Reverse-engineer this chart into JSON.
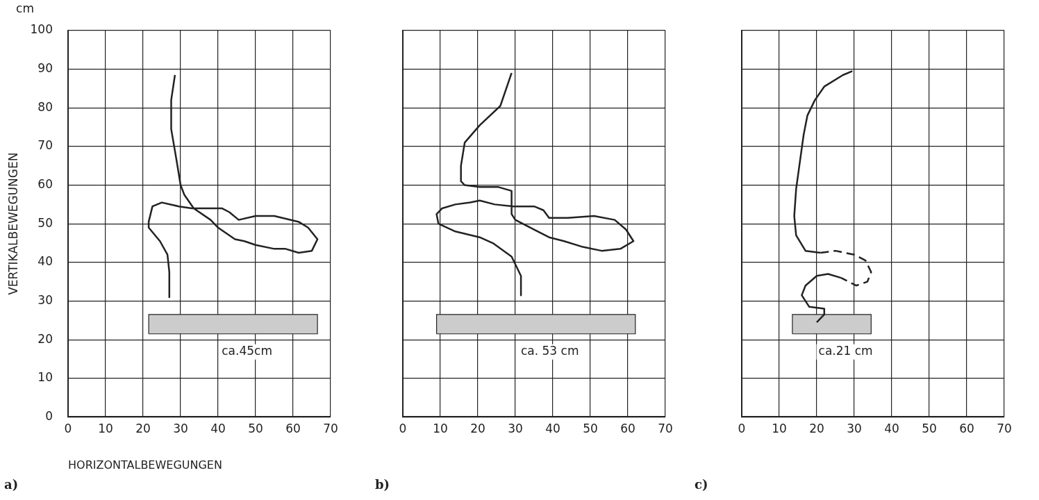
{
  "chart_data": [
    {
      "type": "line",
      "title": "a)",
      "xlabel": "HORIZONTALBEWEGUNGEN",
      "ylabel": "VERTIKALBEWEGUNGEN",
      "xlim": [
        0,
        70
      ],
      "ylim": [
        0,
        100
      ],
      "xticks": [
        0,
        10,
        20,
        30,
        40,
        50,
        60,
        70
      ],
      "yticks": [
        0,
        10,
        20,
        30,
        40,
        50,
        60,
        70,
        80,
        90,
        100
      ],
      "grid": true,
      "marker": "none",
      "annotations": [
        "ca.45cm",
        "cm"
      ],
      "series": [
        {
          "type": "line",
          "color": "#222222",
          "line_style": "solid",
          "x": [
            28.5,
            27.5,
            27.5,
            29,
            30,
            31,
            33.5,
            38,
            40,
            44.5,
            47,
            50,
            55,
            58,
            61.5,
            65,
            66.5,
            64,
            61.5,
            55,
            50,
            45.5,
            43,
            41,
            37,
            33,
            29.5,
            25,
            22.5,
            21.5,
            21.5,
            24.5,
            26.5,
            27,
            27
          ],
          "values": [
            88.5,
            82,
            74.5,
            66,
            60,
            57.5,
            54,
            51,
            49,
            46,
            45.5,
            44.5,
            43.5,
            43.5,
            42.5,
            43,
            46,
            49,
            50.5,
            52,
            52,
            51,
            53,
            54,
            54,
            54,
            54.5,
            55.5,
            54.5,
            50.5,
            49,
            45.5,
            42,
            37.5,
            31
          ]
        },
        {
          "type": "area",
          "color": "#cccccc",
          "x": [
            21.5,
            21.5,
            66.5,
            66.5,
            21.5
          ],
          "values": [
            21.5,
            26.5,
            26.5,
            21.5,
            21.5
          ]
        }
      ]
    },
    {
      "type": "line",
      "title": "b)",
      "xlim": [
        0,
        70
      ],
      "ylim": [
        0,
        100
      ],
      "xticks": [
        0,
        10,
        20,
        30,
        40,
        50,
        60,
        70
      ],
      "yticks": [
        0,
        10,
        20,
        30,
        40,
        50,
        60,
        70,
        80,
        90,
        100
      ],
      "grid": true,
      "marker": "none",
      "tick_labels": "x",
      "annotations": [
        "ca. 53 cm"
      ],
      "series": [
        {
          "type": "line",
          "color": "#222222",
          "line_style": "solid",
          "x": [
            29,
            26,
            20.5,
            16.5,
            15.5,
            15.5,
            16.5,
            20.5,
            25.5,
            29,
            29,
            30,
            35,
            39,
            43,
            48,
            53,
            58,
            61.5,
            59.5,
            56.5,
            51,
            44,
            39,
            37.5,
            35,
            29.5,
            24.5,
            20.5,
            18,
            14,
            10.5,
            9,
            9.5,
            14,
            20.5,
            24,
            29,
            31.5,
            31.5
          ],
          "values": [
            89,
            80.5,
            75.5,
            71,
            65,
            61,
            60,
            59.5,
            59.5,
            58.5,
            52.5,
            51,
            48.5,
            46.5,
            45.5,
            44,
            43,
            43.5,
            45.5,
            48.5,
            51,
            52,
            51.5,
            51.5,
            53.5,
            54.5,
            54.5,
            55,
            56,
            55.5,
            55,
            54,
            52.5,
            50,
            48,
            46.5,
            45,
            41.5,
            36.5,
            31.5
          ]
        },
        {
          "type": "area",
          "color": "#cccccc",
          "x": [
            9,
            9,
            62,
            62,
            9
          ],
          "values": [
            21.5,
            26.5,
            26.5,
            21.5,
            21.5
          ]
        }
      ]
    },
    {
      "type": "line",
      "title": "c)",
      "xlim": [
        0,
        70
      ],
      "ylim": [
        0,
        100
      ],
      "xticks": [
        0,
        10,
        20,
        30,
        40,
        50,
        60,
        70
      ],
      "yticks": [
        0,
        10,
        20,
        30,
        40,
        50,
        60,
        70,
        80,
        90,
        100
      ],
      "grid": true,
      "marker": "none",
      "tick_labels": "x",
      "annotations": [
        "ca.21 cm"
      ],
      "series": [
        {
          "type": "line",
          "color": "#222222",
          "line_style": "solid",
          "x": [
            29.5,
            27,
            22,
            19.5,
            17.5,
            16.5,
            15.5,
            14.5,
            14,
            14.5,
            17,
            21
          ],
          "values": [
            89.5,
            88.5,
            85.5,
            82,
            78,
            73,
            66,
            59,
            52,
            47,
            43,
            42.5
          ]
        },
        {
          "type": "line",
          "color": "#222222",
          "line_style": "dashed",
          "x": [
            21,
            25,
            30,
            33,
            34.5,
            33.5,
            30.5,
            26.5
          ],
          "values": [
            42.5,
            43,
            42,
            40.5,
            37.5,
            35,
            34,
            36
          ]
        },
        {
          "type": "line",
          "color": "#222222",
          "line_style": "solid",
          "x": [
            26.5,
            23,
            20,
            17,
            16,
            18,
            22,
            22,
            20
          ],
          "values": [
            36,
            37,
            36.5,
            34,
            31.5,
            28.5,
            28,
            26.5,
            24.5
          ]
        },
        {
          "type": "area",
          "color": "#cccccc",
          "x": [
            13.5,
            13.5,
            34.5,
            34.5,
            13.5
          ],
          "values": [
            21.5,
            26.5,
            26.5,
            21.5,
            21.5
          ]
        }
      ]
    }
  ]
}
